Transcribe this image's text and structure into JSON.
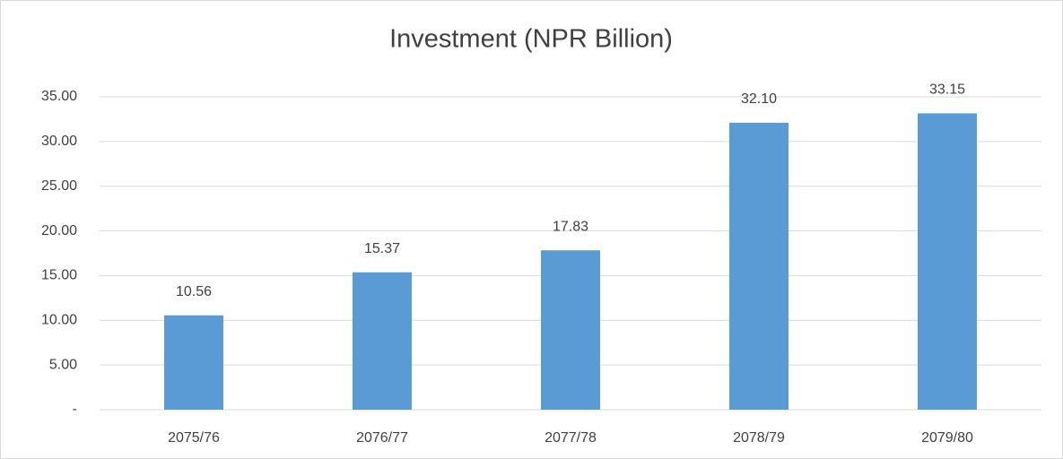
{
  "chart_data": {
    "type": "bar",
    "title": "Investment (NPR Billion)",
    "categories": [
      "2075/76",
      "2076/77",
      "2077/78",
      "2078/79",
      "2079/80"
    ],
    "values": [
      10.56,
      15.37,
      17.83,
      32.1,
      33.15
    ],
    "value_labels": [
      "10.56",
      "15.37",
      "17.83",
      "32.10",
      "33.15"
    ],
    "color": "#5b9bd5",
    "ylim": [
      0,
      35
    ],
    "yticks": [
      {
        "value": 0,
        "label": "-"
      },
      {
        "value": 5,
        "label": "5.00"
      },
      {
        "value": 10,
        "label": "10.00"
      },
      {
        "value": 15,
        "label": "15.00"
      },
      {
        "value": 20,
        "label": "20.00"
      },
      {
        "value": 25,
        "label": "25.00"
      },
      {
        "value": 30,
        "label": "30.00"
      },
      {
        "value": 35,
        "label": "35.00"
      }
    ],
    "grid": true
  }
}
